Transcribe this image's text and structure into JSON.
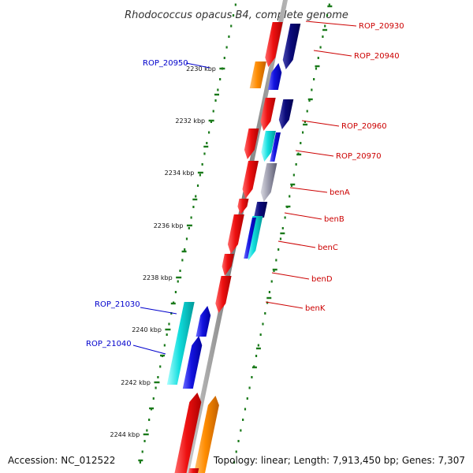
{
  "title": "Rhodococcus opacus B4, complete genome",
  "tick_labels": [
    "2230 kbp",
    "2232 kbp",
    "2234 kbp",
    "2236 kbp",
    "2238 kbp",
    "2240 kbp",
    "2242 kbp",
    "2244 kbp"
  ],
  "genes_reverse_strand": [
    "ROP_20950",
    "ROP_21030",
    "ROP_21040"
  ],
  "genes_forward_strand": [
    "ROP_20930",
    "ROP_20940",
    "ROP_20960",
    "ROP_20970",
    "benA",
    "benB",
    "benC",
    "benD",
    "benK"
  ],
  "footer": {
    "accession": "Accession: NC_012522",
    "topology": "Topology: linear; Length: 7,913,450 bp; Genes: 7,307"
  },
  "colors": {
    "backbone": "#8c8c8c",
    "tick": "#1a7a1a",
    "label_reverse": "#0000cc",
    "label_forward": "#cc0000",
    "gene_red": "#ee1111",
    "gene_navy": "#0a0a7a",
    "gene_blue": "#1414e0",
    "gene_cyan": "#11dddd",
    "gene_orange": "#ff8c00",
    "gene_grey": "#9999aa"
  }
}
